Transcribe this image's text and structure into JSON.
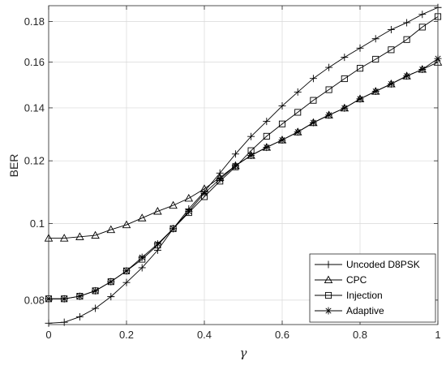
{
  "chart_data": {
    "type": "line",
    "title": "",
    "xlabel": "γ",
    "ylabel": "BER",
    "xlim": [
      0,
      1
    ],
    "ylim": [
      0.0745,
      0.1885
    ],
    "yscale": "log",
    "grid": true,
    "legend_position": "bottom-right",
    "xticks": [
      0,
      0.2,
      0.4,
      0.6,
      0.8,
      1
    ],
    "xtick_labels": [
      "0",
      "0.2",
      "0.4",
      "0.6",
      "0.8",
      "1"
    ],
    "yticks": [
      0.08,
      0.1,
      0.12,
      0.14,
      0.16,
      0.18
    ],
    "ytick_labels": [
      "0.08",
      "0.1",
      "0.12",
      "0.14",
      "0.16",
      "0.18"
    ],
    "x": [
      0,
      0.04,
      0.08,
      0.12,
      0.16,
      0.2,
      0.24,
      0.28,
      0.32,
      0.36,
      0.4,
      0.44,
      0.48,
      0.52,
      0.56,
      0.6,
      0.64,
      0.68,
      0.72,
      0.76,
      0.8,
      0.84,
      0.88,
      0.92,
      0.96,
      1.0
    ],
    "series": [
      {
        "name": "Uncoded D8PSK",
        "marker": "plus",
        "values": [
          0.0748,
          0.075,
          0.0762,
          0.0781,
          0.0808,
          0.0842,
          0.0879,
          0.0925,
          0.0985,
          0.1043,
          0.1097,
          0.1158,
          0.1224,
          0.1288,
          0.1346,
          0.1408,
          0.1466,
          0.1525,
          0.1575,
          0.1622,
          0.1666,
          0.1712,
          0.1758,
          0.1794,
          0.1838,
          0.1875
        ]
      },
      {
        "name": "CPC",
        "marker": "triangle",
        "values": [
          0.0958,
          0.0958,
          0.0962,
          0.0966,
          0.0982,
          0.0996,
          0.1016,
          0.1036,
          0.1054,
          0.1076,
          0.1106,
          0.1143,
          0.1183,
          0.1219,
          0.1248,
          0.1275,
          0.1305,
          0.1341,
          0.1371,
          0.1399,
          0.1437,
          0.1469,
          0.1501,
          0.1536,
          0.1566,
          0.1599
        ]
      },
      {
        "name": "Injection",
        "marker": "square",
        "values": [
          0.0803,
          0.0803,
          0.0809,
          0.0822,
          0.0844,
          0.0871,
          0.0901,
          0.0939,
          0.0985,
          0.1032,
          0.1081,
          0.1131,
          0.1179,
          0.1236,
          0.1289,
          0.1336,
          0.1382,
          0.1431,
          0.1476,
          0.1524,
          0.1571,
          0.1613,
          0.1658,
          0.1708,
          0.1771,
          0.1826
        ]
      },
      {
        "name": "Adaptive",
        "marker": "asterisk",
        "values": [
          0.0803,
          0.0803,
          0.0809,
          0.0822,
          0.0844,
          0.0871,
          0.0906,
          0.0942,
          0.0985,
          0.1036,
          0.1092,
          0.1138,
          0.1183,
          0.1219,
          0.1248,
          0.1275,
          0.1305,
          0.1341,
          0.1371,
          0.1399,
          0.1437,
          0.1469,
          0.1501,
          0.1536,
          0.1566,
          0.1616
        ]
      }
    ]
  }
}
